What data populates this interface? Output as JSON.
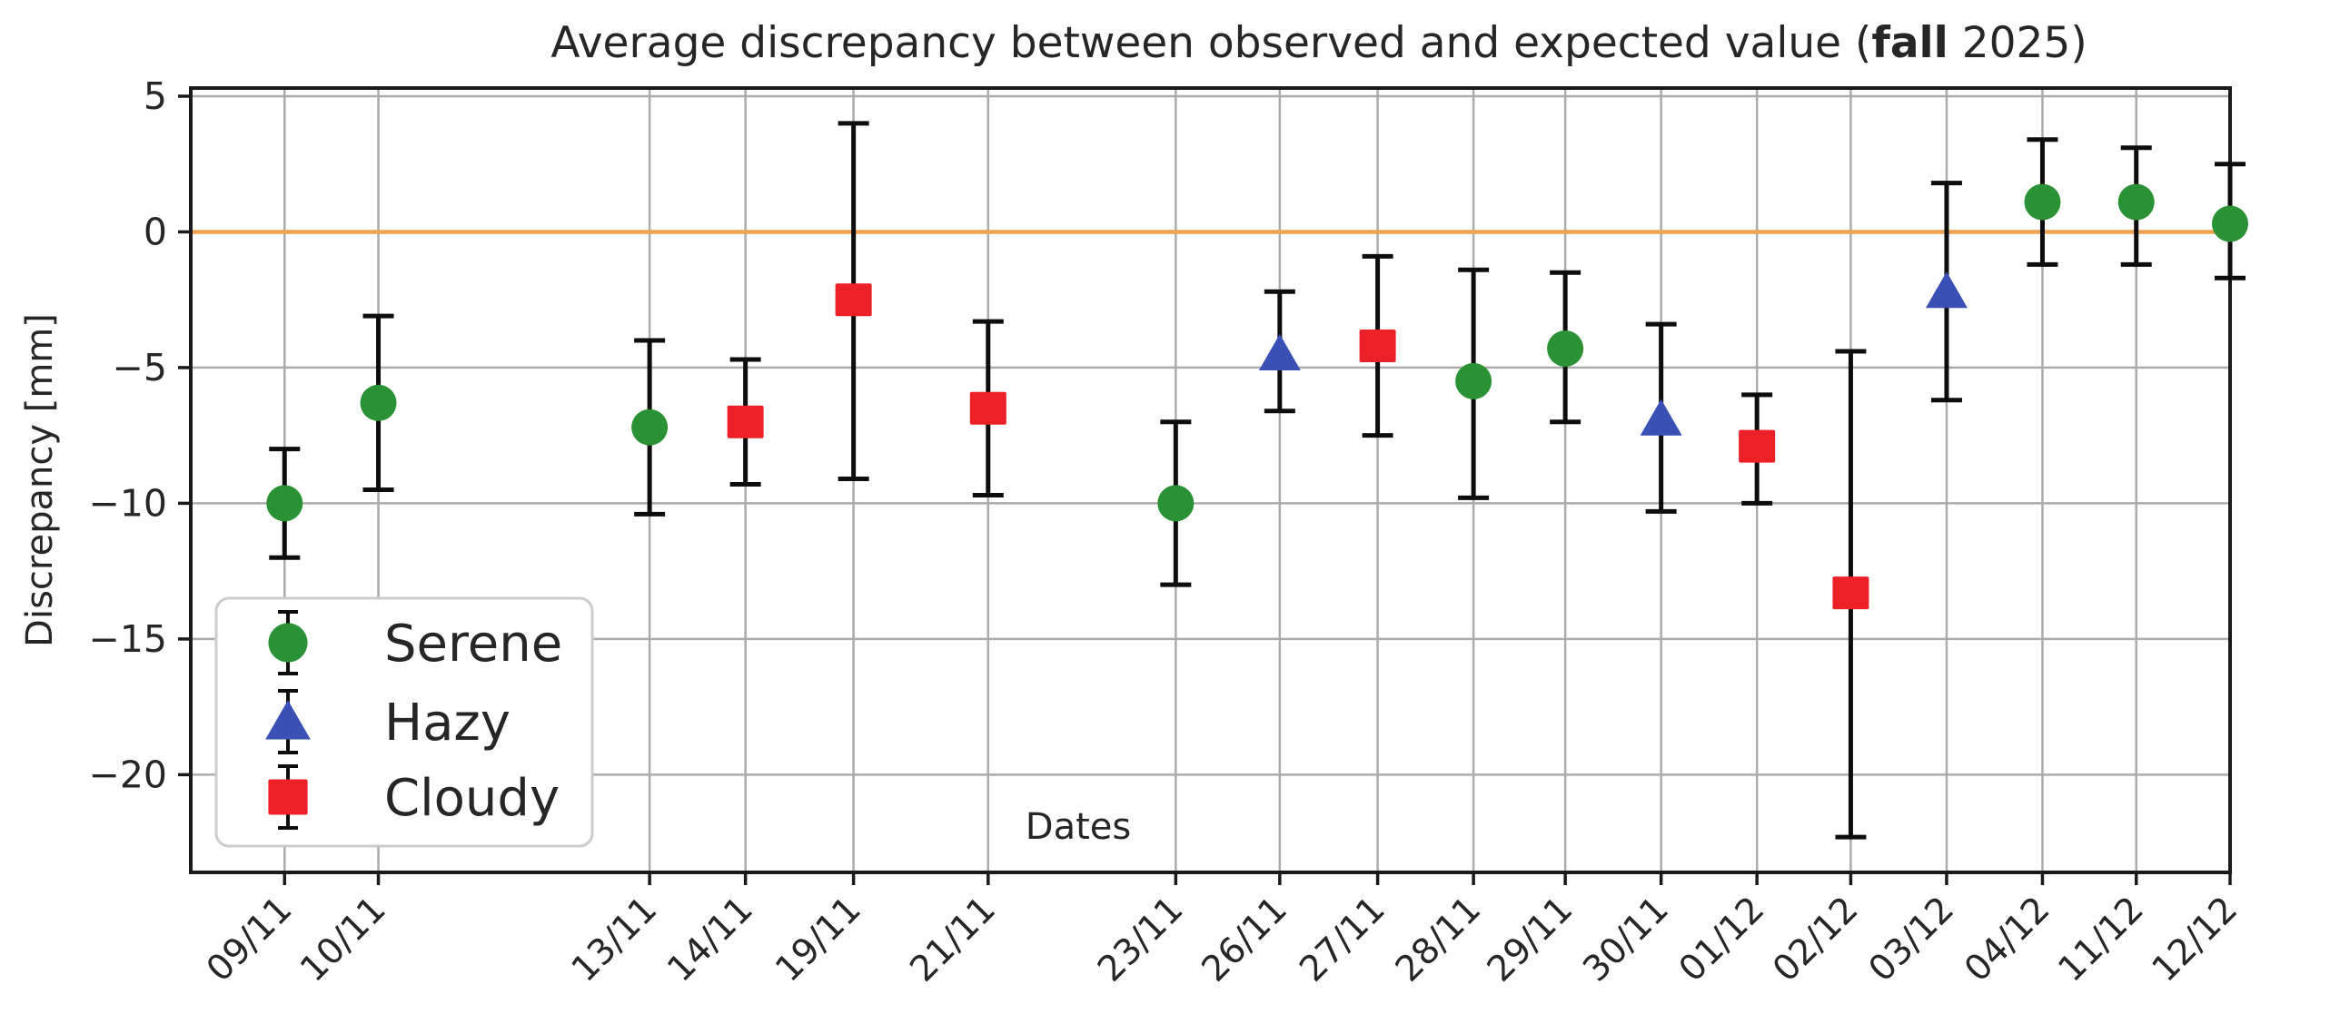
{
  "figure": {
    "title_parts": [
      "Average discrepancy between observed and expected value (",
      "fall",
      " 2025)"
    ],
    "xlabel": "Dates",
    "ylabel": "Discrepancy [mm]"
  },
  "axis": {
    "y_ticks": [
      5,
      0,
      -5,
      -10,
      -15,
      -20
    ],
    "ylim_bottom": -23.6,
    "ylim_top": 5.3,
    "zero_line_value": 0
  },
  "colors": {
    "serene": "#2a9235",
    "hazy": "#3a50b4",
    "cloudy": "#ec2127",
    "zero_line": "#efa14e",
    "gridline": "#ababab",
    "spine": "#1a1a1a",
    "errorbar": "#0d0d0d",
    "legend_border": "#cccccc",
    "text": "#262626"
  },
  "legend": {
    "entries": [
      {
        "series": "serene",
        "label": "Serene"
      },
      {
        "series": "hazy",
        "label": "Hazy"
      },
      {
        "series": "cloudy",
        "label": "Cloudy"
      }
    ]
  },
  "series_styles": {
    "serene": {
      "label": "Serene",
      "marker": "circle",
      "color": "#2a9235"
    },
    "hazy": {
      "label": "Hazy",
      "marker": "triangle",
      "color": "#3a50b4"
    },
    "cloudy": {
      "label": "Cloudy",
      "marker": "square",
      "color": "#ec2127"
    }
  },
  "chart_data": {
    "type": "scatter",
    "subtype": "errorbar",
    "title": "Average discrepancy between observed and expected value (fall 2025)",
    "xlabel": "Dates",
    "ylabel": "Discrepancy [mm]",
    "ylim": [
      -23.6,
      5.3
    ],
    "y_ticks": [
      5,
      0,
      -5,
      -10,
      -15,
      -20
    ],
    "grid": true,
    "legend_position": "lower left",
    "zero_line": {
      "value": 0,
      "color": "#efa14e"
    },
    "points": [
      {
        "date": "09/11",
        "series": "serene",
        "value": -10.0,
        "lo": -12.0,
        "hi": -8.0,
        "x": 0.046
      },
      {
        "date": "10/11",
        "series": "serene",
        "value": -6.3,
        "lo": -9.5,
        "hi": -3.1,
        "x": 0.092
      },
      {
        "date": "13/11",
        "series": "serene",
        "value": -7.2,
        "lo": -10.4,
        "hi": -4.0,
        "x": 0.225
      },
      {
        "date": "14/11",
        "series": "cloudy",
        "value": -7.0,
        "lo": -9.3,
        "hi": -4.7,
        "x": 0.272
      },
      {
        "date": "19/11",
        "series": "cloudy",
        "value": -2.5,
        "lo": -9.1,
        "hi": 4.0,
        "x": 0.325
      },
      {
        "date": "21/11",
        "series": "cloudy",
        "value": -6.5,
        "lo": -9.7,
        "hi": -3.3,
        "x": 0.391
      },
      {
        "date": "23/11",
        "series": "serene",
        "value": -10.0,
        "lo": -13.0,
        "hi": -7.0,
        "x": 0.483
      },
      {
        "date": "26/11",
        "series": "hazy",
        "value": -4.5,
        "lo": -6.6,
        "hi": -2.2,
        "x": 0.534
      },
      {
        "date": "27/11",
        "series": "cloudy",
        "value": -4.2,
        "lo": -7.5,
        "hi": -0.9,
        "x": 0.582
      },
      {
        "date": "28/11",
        "series": "serene",
        "value": -5.5,
        "lo": -9.8,
        "hi": -1.4,
        "x": 0.629
      },
      {
        "date": "29/11",
        "series": "serene",
        "value": -4.3,
        "lo": -7.0,
        "hi": -1.5,
        "x": 0.674
      },
      {
        "date": "30/11",
        "series": "hazy",
        "value": -6.9,
        "lo": -10.3,
        "hi": -3.4,
        "x": 0.721
      },
      {
        "date": "01/12",
        "series": "cloudy",
        "value": -7.9,
        "lo": -10.0,
        "hi": -6.0,
        "x": 0.768
      },
      {
        "date": "02/12",
        "series": "cloudy",
        "value": -13.3,
        "lo": -22.3,
        "hi": -4.4,
        "x": 0.814
      },
      {
        "date": "03/12",
        "series": "hazy",
        "value": -2.2,
        "lo": -6.2,
        "hi": 1.8,
        "x": 0.861
      },
      {
        "date": "04/12",
        "series": "serene",
        "value": 1.1,
        "lo": -1.2,
        "hi": 3.4,
        "x": 0.908
      },
      {
        "date": "11/12",
        "series": "serene",
        "value": 1.1,
        "lo": -1.2,
        "hi": 3.1,
        "x": 0.954
      },
      {
        "date": "12/12",
        "series": "serene",
        "value": 0.3,
        "lo": -1.7,
        "hi": 2.5,
        "x": 1.0
      }
    ]
  }
}
